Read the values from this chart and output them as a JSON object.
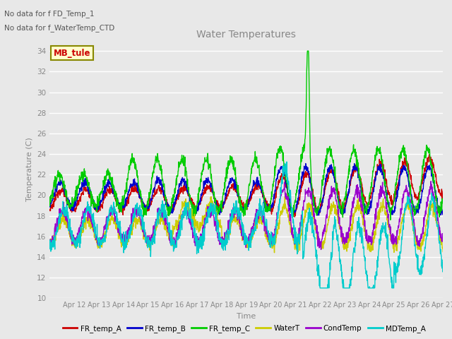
{
  "title": "Water Temperatures",
  "xlabel": "Time",
  "ylabel": "Temperature (C)",
  "annotations": [
    "No data for f FD_Temp_1",
    "No data for f_WaterTemp_CTD"
  ],
  "legend_box_label": "MB_tule",
  "ylim": [
    10,
    35
  ],
  "yticks": [
    10,
    12,
    14,
    16,
    18,
    20,
    22,
    24,
    26,
    28,
    30,
    32,
    34
  ],
  "xtick_labels": [
    "Apr 12",
    "Apr 13",
    "Apr 14",
    "Apr 15",
    "Apr 16",
    "Apr 17",
    "Apr 18",
    "Apr 19",
    "Apr 20",
    "Apr 21",
    "Apr 22",
    "Apr 23",
    "Apr 24",
    "Apr 25",
    "Apr 26",
    "Apr 27"
  ],
  "series": {
    "FR_temp_A": {
      "color": "#cc0000",
      "lw": 1.0
    },
    "FR_temp_B": {
      "color": "#0000cc",
      "lw": 1.0
    },
    "FR_temp_C": {
      "color": "#00cc00",
      "lw": 1.0
    },
    "WaterT": {
      "color": "#cccc00",
      "lw": 1.0
    },
    "CondTemp": {
      "color": "#9900cc",
      "lw": 1.0
    },
    "MDTemp_A": {
      "color": "#00cccc",
      "lw": 1.0
    }
  },
  "background_color": "#e8e8e8",
  "plot_bg": "#e8e8e8",
  "grid_color": "#ffffff",
  "title_color": "#888888",
  "label_color": "#888888",
  "tick_color": "#888888"
}
